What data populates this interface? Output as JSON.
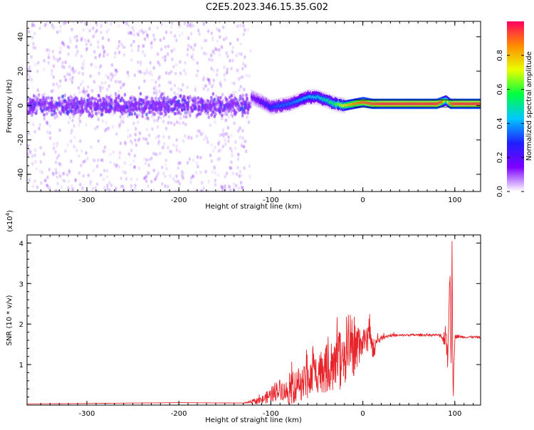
{
  "title": "C2E5.2023.346.15.35.G02",
  "colors": {
    "snr_line": "#e8242b",
    "frame": "#000000",
    "scatter": "#8b2cff"
  },
  "chart_data": [
    {
      "type": "heatmap",
      "xlabel": "Height of straight line (km)",
      "ylabel": "Frequency (Hz)",
      "xlim": [
        -365,
        128
      ],
      "ylim": [
        -50,
        49
      ],
      "xticks": [
        "-300",
        "-200",
        "-100",
        "0",
        "100"
      ],
      "xtick_values": [
        -300,
        -200,
        -100,
        0,
        100
      ],
      "yticks": [
        "-40",
        "-20",
        "0",
        "20",
        "40"
      ],
      "ytick_values": [
        -40,
        -20,
        0,
        20,
        40
      ],
      "colorbar": {
        "label": "Normalized spectral amplitude",
        "range": [
          0.0,
          1.0
        ],
        "ticks": [
          "0.0",
          "0.2",
          "0.4",
          "0.6",
          "0.8"
        ],
        "tick_values": [
          0.0,
          0.2,
          0.4,
          0.6,
          0.8
        ],
        "colormap": [
          "#ffffff",
          "#7d00ff",
          "#2020ff",
          "#00c8ff",
          "#00ff40",
          "#e8ff00",
          "#ff8c00",
          "#ff0060"
        ]
      },
      "noise_region_x": [
        -365,
        -122
      ],
      "band_x": [
        -122,
        128
      ],
      "ridge": {
        "x": [
          -122,
          -110,
          -100,
          -90,
          -80,
          -70,
          -60,
          -50,
          -40,
          -30,
          -20,
          -10,
          0,
          10,
          20,
          40,
          60,
          80,
          85,
          90,
          95,
          100,
          110,
          128
        ],
        "y": [
          5,
          2,
          -1,
          0,
          1,
          3,
          5,
          5,
          3,
          1,
          0,
          1,
          2,
          1,
          1,
          1,
          1,
          1,
          2,
          3,
          1,
          1,
          1,
          1
        ],
        "amplitude": [
          0.15,
          0.22,
          0.3,
          0.35,
          0.35,
          0.4,
          0.42,
          0.45,
          0.5,
          0.6,
          0.75,
          0.85,
          0.9,
          0.92,
          0.95,
          0.95,
          0.95,
          0.95,
          0.9,
          0.6,
          0.9,
          0.95,
          0.95,
          0.95
        ]
      }
    },
    {
      "type": "line",
      "xlabel": "Height of straight line (km)",
      "ylabel": "SNR (10 * v/v)",
      "multiplier_label": "(x10",
      "multiplier_exp": "4",
      "multiplier_close": ")",
      "xlim": [
        -365,
        128
      ],
      "ylim": [
        0,
        4.2
      ],
      "xticks": [
        "-300",
        "-200",
        "-100",
        "0",
        "100"
      ],
      "xtick_values": [
        -300,
        -200,
        -100,
        0,
        100
      ],
      "yticks": [
        "1",
        "2",
        "3",
        "4"
      ],
      "ytick_values": [
        1,
        2,
        3,
        4
      ],
      "series": [
        {
          "x": [
            -365,
            -300,
            -200,
            -130,
            -110,
            -100,
            -95,
            -90,
            -80,
            -70,
            -60,
            -50,
            -40,
            -30,
            -20,
            -15,
            -10,
            -5,
            0,
            5,
            8,
            10,
            15,
            20,
            25,
            30,
            40,
            50,
            60,
            70,
            80,
            85,
            88,
            90,
            92,
            94,
            95,
            96,
            97,
            98,
            100,
            110,
            120,
            128
          ],
          "y": [
            0.03,
            0.04,
            0.06,
            0.05,
            0.12,
            0.25,
            0.35,
            0.4,
            0.3,
            0.5,
            0.55,
            0.8,
            0.9,
            0.95,
            1.0,
            1.3,
            1.25,
            1.4,
            1.5,
            1.6,
            1.9,
            1.3,
            1.55,
            1.65,
            1.7,
            1.72,
            1.72,
            1.73,
            1.73,
            1.73,
            1.73,
            1.72,
            1.6,
            1.9,
            1.2,
            2.6,
            3.2,
            0.6,
            4.2,
            0.1,
            1.7,
            1.68,
            1.68,
            1.67
          ],
          "noise": [
            0.0,
            0.0,
            0.0,
            0.0,
            0.1,
            0.18,
            0.25,
            0.25,
            0.3,
            0.4,
            0.45,
            0.5,
            0.6,
            0.6,
            0.6,
            0.5,
            0.55,
            0.45,
            0.4,
            0.3,
            0.4,
            0.3,
            0.15,
            0.06,
            0.05,
            0.04,
            0.03,
            0.03,
            0.03,
            0.03,
            0.03,
            0.05,
            0.2,
            0.35,
            0.4,
            0.5,
            0.3,
            0.3,
            0.3,
            0.3,
            0.05,
            0.03,
            0.03,
            0.03
          ]
        }
      ]
    }
  ]
}
